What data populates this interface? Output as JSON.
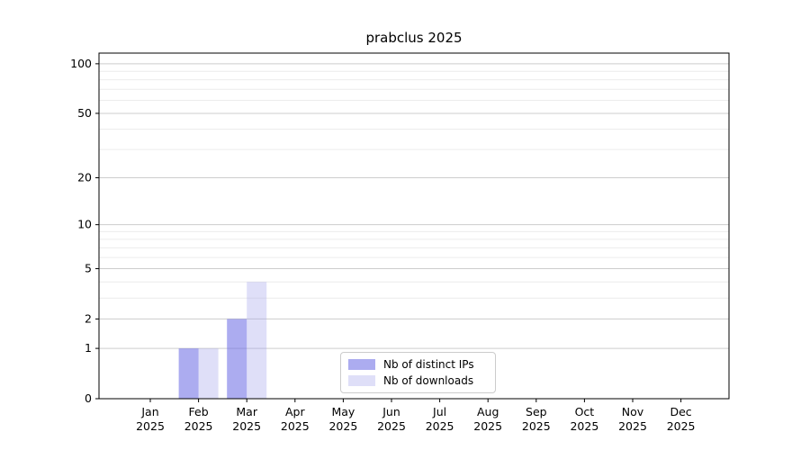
{
  "chart_data": {
    "type": "bar",
    "title": "prabclus 2025",
    "categories": [
      "Jan",
      "Feb",
      "Mar",
      "Apr",
      "May",
      "Jun",
      "Jul",
      "Aug",
      "Sep",
      "Oct",
      "Nov",
      "Dec"
    ],
    "year_label": "2025",
    "series": [
      {
        "name": "Nb of distinct IPs",
        "color": "rgba(104,104,228,0.55)",
        "solid_hex": "#aaaaee",
        "values": [
          0,
          1,
          2,
          0,
          0,
          0,
          0,
          0,
          0,
          0,
          0,
          0
        ]
      },
      {
        "name": "Nb of downloads",
        "color": "rgba(163,163,236,0.35)",
        "solid_hex": "#dcdcf8",
        "values": [
          0,
          1,
          4,
          0,
          0,
          0,
          0,
          0,
          0,
          0,
          0,
          0
        ]
      }
    ],
    "xlabel": "",
    "ylabel": "",
    "yscale": "log1p",
    "ylim": [
      0,
      116
    ],
    "yticks": [
      0,
      1,
      2,
      5,
      10,
      20,
      50,
      100
    ],
    "minor_yticks": [
      3,
      4,
      6,
      7,
      8,
      9,
      30,
      40,
      60,
      70,
      80,
      90
    ],
    "grid": {
      "on": true,
      "major_color": "#cdcdcd",
      "minor_color": "#ececec"
    },
    "axis_color": "#000000",
    "legend": {
      "position": "inside-bottom-center"
    }
  }
}
